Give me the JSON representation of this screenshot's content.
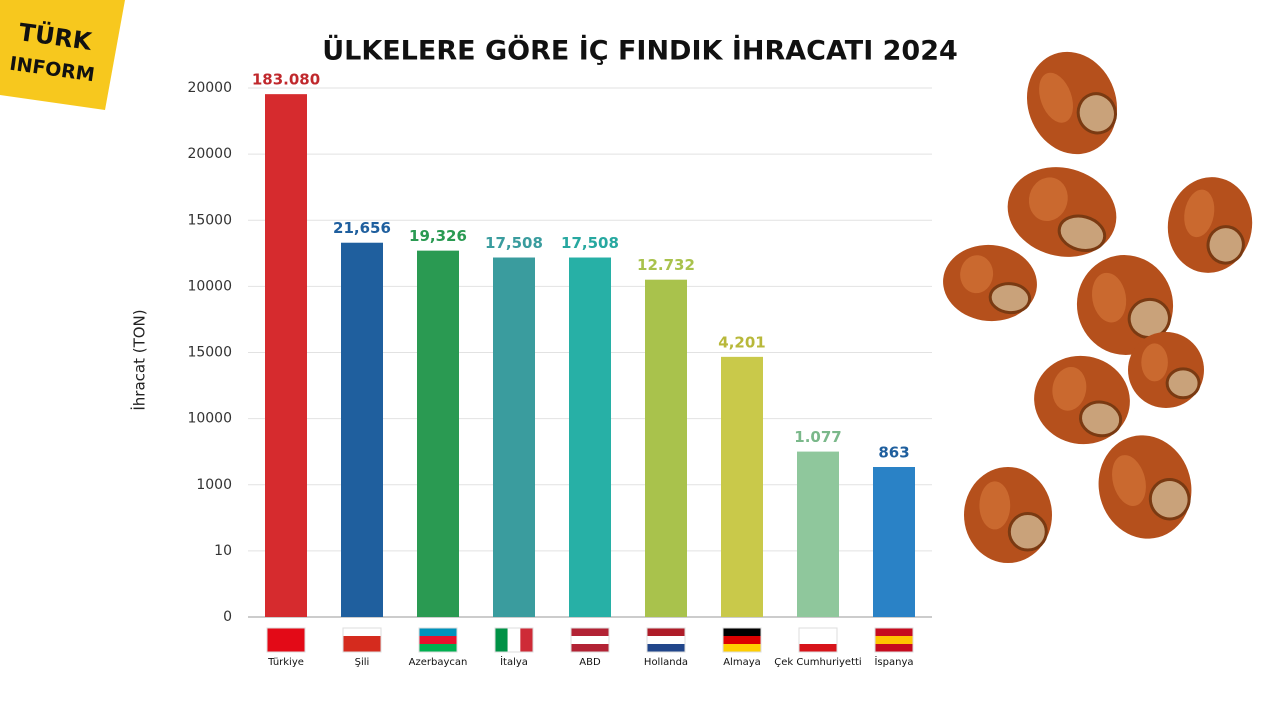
{
  "logo": {
    "line1": "TÜRK",
    "line2": "INFORM"
  },
  "chart_data": {
    "type": "bar",
    "title": "ÜLKELERE GÖRE İÇ FINDIK İHRACATI 2024",
    "y_label": "İhracat (TON)",
    "y_axis_labels": [
      "20000",
      "20000",
      "15000",
      "10000",
      "15000",
      "10000",
      "1000",
      "10",
      "0"
    ],
    "categories": [
      "Türkiye",
      "Şili",
      "Azerbaycan",
      "İtalya",
      "ABD",
      "Hollanda",
      "Almaya",
      "Çek Cumhuriyetti",
      "İspanya"
    ],
    "values": [
      183080,
      21656,
      19326,
      17508,
      17508,
      12732,
      4201,
      1077,
      863
    ],
    "value_labels": [
      "183.080",
      "21,656",
      "19,326",
      "17,508",
      "17,508",
      "12.732",
      "4,201",
      "1.077",
      "863"
    ],
    "colors": [
      "#d62b2e",
      "#1f5f9e",
      "#2a9a52",
      "#3a9c9e",
      "#27b0a6",
      "#a9c24c",
      "#c9c94a",
      "#8fc79c",
      "#2a82c6"
    ],
    "label_colors": [
      "#c0282c",
      "#1f5f9e",
      "#2a9a52",
      "#3a9c9e",
      "#27a8a0",
      "#a9c24c",
      "#b8b83a",
      "#7ab88a",
      "#1f5f9e"
    ],
    "ylim": [
      100,
      200000
    ],
    "log": true,
    "grid": true
  }
}
